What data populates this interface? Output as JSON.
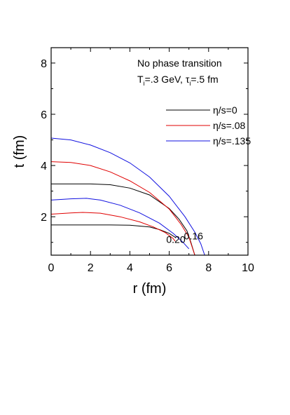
{
  "chart_data": {
    "type": "line",
    "title": "",
    "xlabel": "r (fm)",
    "ylabel": "t (fm)",
    "xlim": [
      0,
      10
    ],
    "ylim": [
      0.5,
      8.6
    ],
    "x_ticks": [
      "0",
      "2",
      "4",
      "6",
      "8",
      "10"
    ],
    "y_ticks": [
      "2",
      "4",
      "6",
      "8"
    ],
    "annotation": {
      "line1": "No phase transition",
      "line2_T": "T",
      "line2_T_sub": "i",
      "line2_mid": "=.3 GeV, ",
      "line2_tau": "τ",
      "line2_tau_sub": "i",
      "line2_end": "=.5 fm"
    },
    "contour_labels": [
      "0.20",
      "0.16"
    ],
    "legend_position": "right",
    "series": [
      {
        "name": "η/s=0",
        "color": "#000000",
        "curves": [
          {
            "x": [
              0,
              1,
              2,
              3,
              4,
              5,
              5.5,
              6.0,
              6.3
            ],
            "y": [
              1.68,
              1.68,
              1.68,
              1.68,
              1.67,
              1.6,
              1.5,
              1.35,
              1.2
            ]
          },
          {
            "x": [
              0,
              1,
              2,
              3,
              4,
              5,
              6,
              6.5,
              6.9,
              7.1,
              7.3
            ],
            "y": [
              3.28,
              3.28,
              3.28,
              3.25,
              3.12,
              2.85,
              2.32,
              1.9,
              1.45,
              1.0,
              0.5
            ]
          }
        ]
      },
      {
        "name": "η/s=.08",
        "color": "#e00000",
        "curves": [
          {
            "x": [
              0,
              1,
              1.6,
              2.5,
              3.5,
              4.5,
              5.2,
              5.8,
              6.2,
              6.3
            ],
            "y": [
              2.1,
              2.15,
              2.17,
              2.14,
              2.0,
              1.8,
              1.6,
              1.38,
              1.15,
              1.05
            ]
          },
          {
            "x": [
              0,
              1,
              2,
              3,
              4,
              5,
              6,
              6.6,
              7.0,
              7.3
            ],
            "y": [
              4.15,
              4.12,
              4.0,
              3.75,
              3.4,
              2.95,
              2.3,
              1.7,
              1.2,
              0.5
            ]
          }
        ]
      },
      {
        "name": "η/s=.135",
        "color": "#1010e0",
        "curves": [
          {
            "x": [
              0,
              1,
              1.8,
              2.5,
              3.5,
              4.5,
              5.5,
              6.2,
              6.7,
              7.0
            ],
            "y": [
              2.65,
              2.7,
              2.72,
              2.65,
              2.45,
              2.15,
              1.75,
              1.35,
              1.0,
              0.75
            ]
          },
          {
            "x": [
              0,
              1,
              2,
              3,
              4,
              5,
              6,
              6.8,
              7.3,
              7.6,
              7.8
            ],
            "y": [
              5.07,
              5.0,
              4.8,
              4.5,
              4.1,
              3.55,
              2.8,
              2.0,
              1.4,
              0.95,
              0.5
            ]
          }
        ]
      }
    ]
  }
}
